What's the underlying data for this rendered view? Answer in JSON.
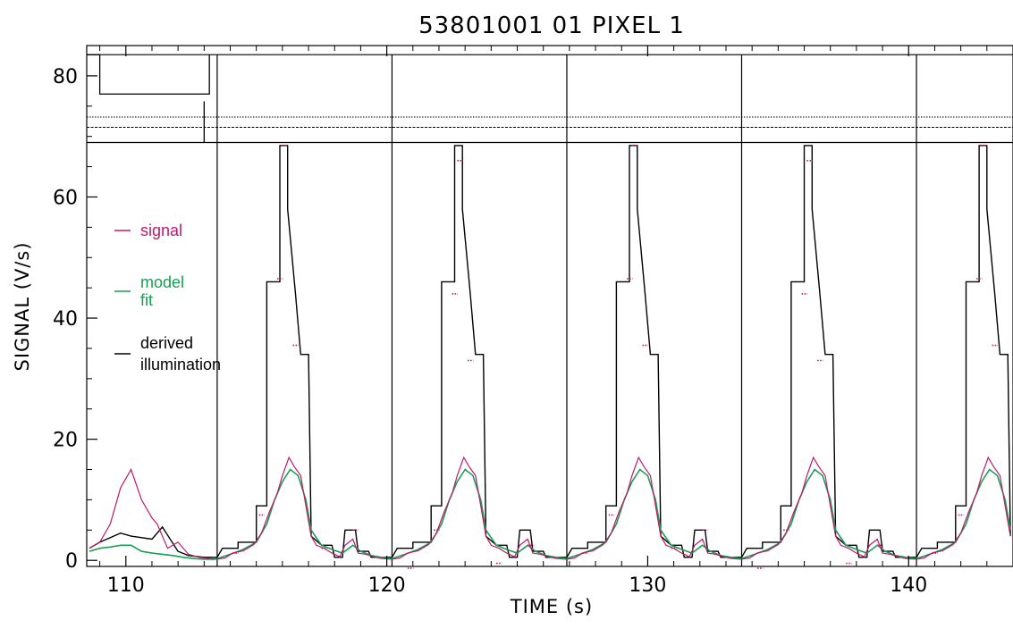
{
  "chart_data": {
    "type": "line",
    "title": "53801001 01 PIXEL 1",
    "xlabel": "TIME (s)",
    "ylabel": "SIGNAL (V/s)",
    "xlim": [
      108.5,
      144.0
    ],
    "ylim": [
      -1,
      85
    ],
    "x_ticks": [
      110,
      120,
      130,
      140
    ],
    "x_tick_labels": [
      "110",
      "120",
      "130",
      "140"
    ],
    "y_ticks": [
      0,
      20,
      40,
      60,
      80
    ],
    "y_tick_labels": [
      "0",
      "20",
      "40",
      "60",
      "80"
    ],
    "legend_position": "left",
    "colors": {
      "signal": "#c0186e",
      "model": "#16a050",
      "illum": "#000000",
      "frame": "#000000"
    },
    "cycle_start": 113.5,
    "cycle_period": 6.7,
    "cycle_boundaries": [
      113.5,
      120.2,
      126.9,
      133.6,
      140.3
    ],
    "pulse_plateaus": [
      68.5,
      68.5,
      68.5,
      68.5,
      68.5
    ],
    "upper_panel": {
      "outline_top": 83.5,
      "outline_bottom": 69,
      "step_level": 77,
      "step_start": 109.0,
      "step_end": 113.2,
      "dotted_levels": [
        73.2,
        71.5
      ]
    },
    "series": [
      {
        "name": "signal",
        "x": [
          108.6,
          109.0,
          109.4,
          109.8,
          110.2,
          110.6,
          111.0,
          111.2,
          111.6,
          112.0,
          112.4,
          112.8,
          113.2,
          113.6,
          114.2,
          114.8,
          115.2,
          115.6,
          116.0,
          116.3,
          116.6,
          116.9,
          117.2,
          117.6,
          118.0,
          118.4,
          118.8,
          119.2,
          119.6,
          120.0
        ],
        "y": [
          2,
          3,
          6,
          12,
          15,
          10,
          7,
          6,
          2,
          3,
          1,
          0.5,
          0.3,
          1,
          2,
          3,
          4,
          8,
          13,
          17,
          15,
          12,
          5,
          3,
          2,
          1.5,
          3,
          1,
          0.5,
          0.3
        ]
      },
      {
        "name": "model fit",
        "x": [
          108.6,
          109.0,
          109.4,
          109.8,
          110.2,
          110.6,
          111.0,
          111.4,
          111.8,
          112.2,
          112.6,
          113.0,
          113.4,
          113.6,
          114.2,
          114.8,
          115.2,
          115.6,
          116.0,
          116.3,
          116.6,
          116.9,
          117.2,
          117.6,
          118.0,
          118.4,
          118.8,
          119.2,
          119.6,
          120.0
        ],
        "y": [
          1.5,
          2,
          2.2,
          2.5,
          2.5,
          1.5,
          1.2,
          1,
          0.8,
          0.5,
          0.3,
          0.2,
          0.2,
          0.5,
          1,
          2,
          3,
          6,
          12,
          16,
          15,
          12,
          6,
          3,
          2,
          1.5,
          1.5,
          1,
          0.5,
          0.3
        ]
      },
      {
        "name": "derived illumination",
        "x": [
          108.6,
          109.0,
          109.8,
          110.2,
          111.0,
          111.4,
          112.0,
          112.4,
          113.0,
          113.6,
          114.2,
          114.8,
          115.2,
          115.6,
          116.0,
          116.3,
          116.6,
          116.9,
          117.2,
          117.6,
          118.0,
          118.4,
          118.8,
          119.2,
          119.6,
          120.0
        ],
        "y": [
          2,
          3,
          4.5,
          4,
          3.5,
          5.5,
          1.5,
          0.8,
          0.5,
          0.5,
          2,
          3,
          9,
          46,
          68.5,
          68.5,
          44,
          34,
          5,
          2,
          2,
          5,
          2,
          1,
          0.5,
          0.5
        ]
      }
    ],
    "legend": [
      {
        "key": "signal",
        "lines": [
          "signal"
        ]
      },
      {
        "key": "model",
        "lines": [
          "model",
          "fit"
        ]
      },
      {
        "key": "illum",
        "lines": [
          "derived",
          "illumination"
        ]
      }
    ]
  }
}
